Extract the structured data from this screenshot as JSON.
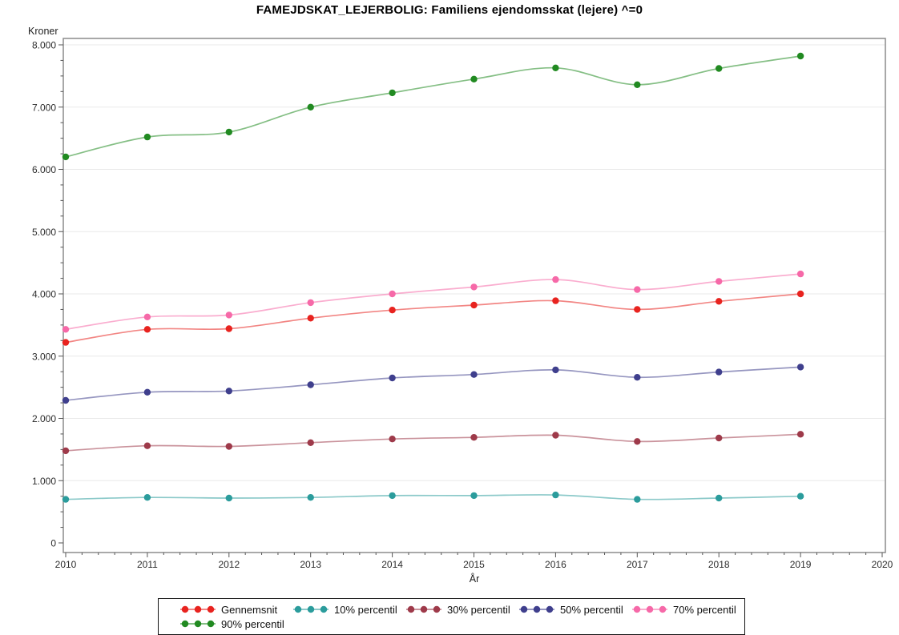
{
  "title": "FAMEJDSKAT_LEJERBOLIG: Familiens ejendomsskat (lejere) ^=0",
  "chart_data": {
    "type": "line",
    "title": "FAMEJDSKAT_LEJERBOLIG: Familiens ejendomsskat (lejere) ^=0",
    "xlabel": "År",
    "ylabel": "Kroner",
    "x": [
      2010,
      2011,
      2012,
      2013,
      2014,
      2015,
      2016,
      2017,
      2018,
      2019
    ],
    "xlim": [
      2010,
      2020
    ],
    "ylim": [
      0,
      8000
    ],
    "x_tick_labels": [
      "2010",
      "2011",
      "2012",
      "2013",
      "2014",
      "2015",
      "2016",
      "2017",
      "2018",
      "2019",
      "2020"
    ],
    "y_tick_labels": [
      "0",
      "1.000",
      "2.000",
      "3.000",
      "4.000",
      "5.000",
      "6.000",
      "7.000",
      "8.000"
    ],
    "y_major_step": 1000,
    "y_minor_step": 250,
    "x_major_step": 1,
    "x_minor_step": 0.2,
    "grid": "horizontal-major",
    "legend_position": "bottom",
    "marker": "filled-circle",
    "line_style": "smooth",
    "colors": {
      "frame": "#8c8c8c",
      "grid": "#e9e9e9",
      "tick": "#555555",
      "text": "#2d2d2d",
      "legend_border": "#141414"
    },
    "series": [
      {
        "name": "Gennemsnit",
        "color": "#e8231f",
        "values": [
          3220,
          3430,
          3440,
          3610,
          3740,
          3820,
          3890,
          3750,
          3880,
          4000
        ]
      },
      {
        "name": "10% percentil",
        "color": "#2b9c9c",
        "values": [
          700,
          730,
          720,
          730,
          760,
          760,
          770,
          700,
          720,
          750
        ]
      },
      {
        "name": "30% percentil",
        "color": "#9e3a4a",
        "values": [
          1480,
          1560,
          1550,
          1610,
          1670,
          1695,
          1730,
          1630,
          1685,
          1745
        ]
      },
      {
        "name": "50% percentil",
        "color": "#3f3f8d",
        "values": [
          2290,
          2420,
          2440,
          2540,
          2650,
          2705,
          2780,
          2660,
          2745,
          2825
        ]
      },
      {
        "name": "70% percentil",
        "color": "#f669a8",
        "values": [
          3430,
          3630,
          3660,
          3860,
          4000,
          4110,
          4230,
          4070,
          4200,
          4320
        ]
      },
      {
        "name": "90% percentil",
        "color": "#218a21",
        "values": [
          6200,
          6520,
          6600,
          7000,
          7230,
          7450,
          7630,
          7360,
          7620,
          7820
        ]
      }
    ]
  }
}
